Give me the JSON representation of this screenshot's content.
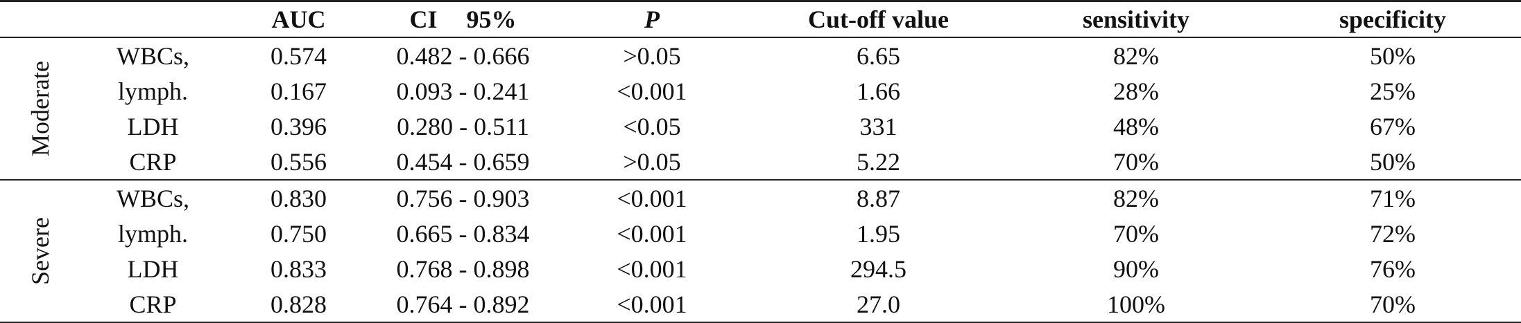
{
  "header": {
    "auc": "AUC",
    "ci_left": "CI",
    "ci_right": "95%",
    "p": "P",
    "cutoff": "Cut-off value",
    "sensitivity": "sensitivity",
    "specificity": "specificity"
  },
  "groups": [
    {
      "label": "Moderate",
      "rows": [
        {
          "marker": "WBCs,",
          "auc": "0.574",
          "ci": "0.482 - 0.666",
          "p": ">0.05",
          "cutoff": "6.65",
          "sensitivity": "82%",
          "specificity": "50%"
        },
        {
          "marker": "lymph.",
          "auc": "0.167",
          "ci": "0.093 - 0.241",
          "p": "<0.001",
          "cutoff": "1.66",
          "sensitivity": "28%",
          "specificity": "25%"
        },
        {
          "marker": "LDH",
          "auc": "0.396",
          "ci": "0.280 - 0.511",
          "p": "<0.05",
          "cutoff": "331",
          "sensitivity": "48%",
          "specificity": "67%"
        },
        {
          "marker": "CRP",
          "auc": "0.556",
          "ci": "0.454 - 0.659",
          "p": ">0.05",
          "cutoff": "5.22",
          "sensitivity": "70%",
          "specificity": "50%"
        }
      ]
    },
    {
      "label": "Severe",
      "rows": [
        {
          "marker": "WBCs,",
          "auc": "0.830",
          "ci": "0.756 - 0.903",
          "p": "<0.001",
          "cutoff": "8.87",
          "sensitivity": "82%",
          "specificity": "71%"
        },
        {
          "marker": "lymph.",
          "auc": "0.750",
          "ci": "0.665 - 0.834",
          "p": "<0.001",
          "cutoff": "1.95",
          "sensitivity": "70%",
          "specificity": "72%"
        },
        {
          "marker": "LDH",
          "auc": "0.833",
          "ci": "0.768 - 0.898",
          "p": "<0.001",
          "cutoff": "294.5",
          "sensitivity": "90%",
          "specificity": "76%"
        },
        {
          "marker": "CRP",
          "auc": "0.828",
          "ci": "0.764 - 0.892",
          "p": "<0.001",
          "cutoff": "27.0",
          "sensitivity": "100%",
          "specificity": "70%"
        }
      ]
    }
  ]
}
